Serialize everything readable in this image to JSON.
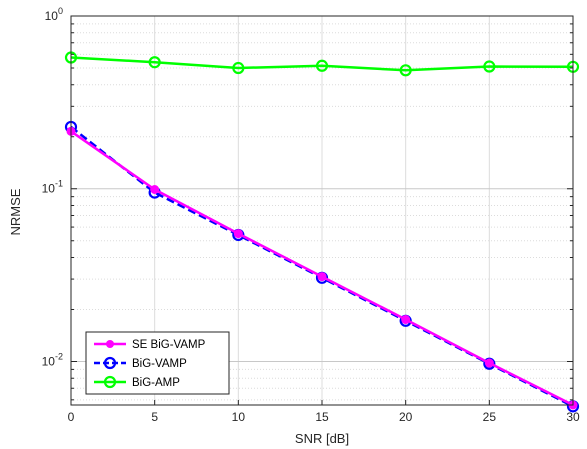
{
  "chart_data": {
    "type": "line",
    "title": "",
    "xlabel": "SNR [dB]",
    "ylabel": "NRMSE",
    "x": [
      0,
      5,
      10,
      15,
      20,
      25,
      30
    ],
    "xticks": [
      "0",
      "5",
      "10",
      "15",
      "20",
      "25",
      "30"
    ],
    "xlim": [
      0,
      30
    ],
    "ylim": [
      0.0056,
      1
    ],
    "yscale": "log",
    "yticks": [
      {
        "value": 0.01,
        "base": "10",
        "exp": "-2"
      },
      {
        "value": 0.1,
        "base": "10",
        "exp": "-1"
      },
      {
        "value": 1,
        "base": "10",
        "exp": "0"
      }
    ],
    "grid": true,
    "legend_position": "bottom-left",
    "series": [
      {
        "name": "SE BiG-VAMP",
        "color": "#ff00ff",
        "line": "solid",
        "marker": "filled-circle",
        "values": [
          0.215,
          0.099,
          0.055,
          0.031,
          0.0175,
          0.0098,
          0.0056
        ]
      },
      {
        "name": "BiG-VAMP",
        "color": "#0000ff",
        "line": "dashed",
        "marker": "open-circle",
        "values": [
          0.228,
          0.095,
          0.054,
          0.0305,
          0.0172,
          0.0097,
          0.0055
        ]
      },
      {
        "name": "BiG-AMP",
        "color": "#00ff00",
        "line": "solid",
        "marker": "open-circle",
        "values": [
          0.575,
          0.54,
          0.5,
          0.515,
          0.485,
          0.51,
          0.508
        ]
      }
    ]
  }
}
